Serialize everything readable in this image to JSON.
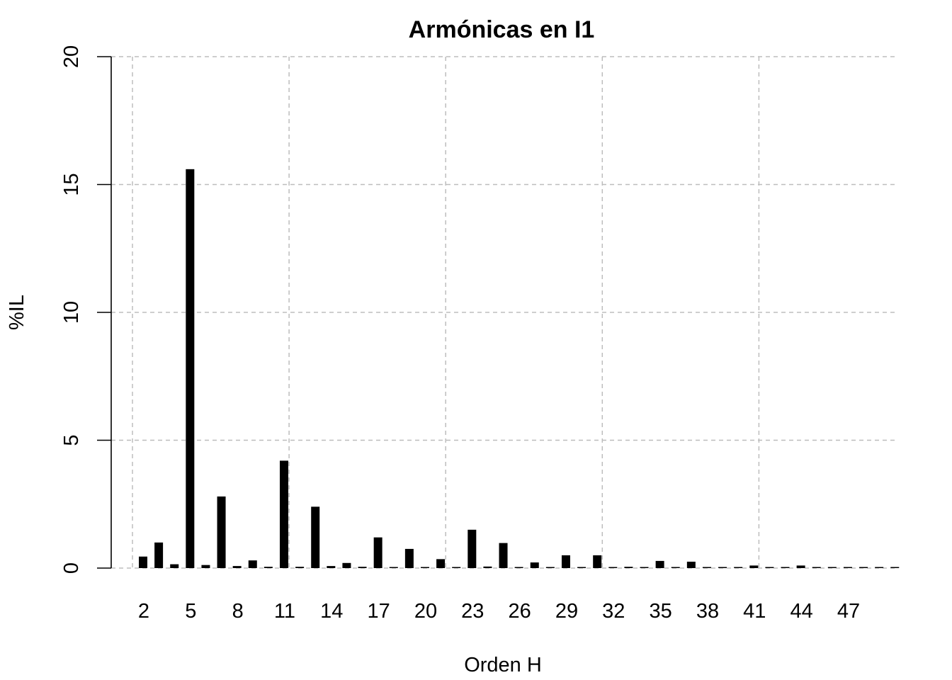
{
  "chart_data": {
    "type": "bar",
    "title": "Armónicas en I1",
    "xlabel": "Orden H",
    "ylabel": "%IL",
    "ylim": [
      0,
      20
    ],
    "yticks": [
      0,
      5,
      10,
      15,
      20
    ],
    "ytick_labels": [
      "0",
      "5",
      "10",
      "15",
      "20"
    ],
    "grid": true,
    "bar_color": "#000000",
    "grid_color": "#bdbdbd",
    "x_tick_labels": [
      "2",
      "5",
      "8",
      "11",
      "14",
      "17",
      "20",
      "23",
      "26",
      "29",
      "32",
      "35",
      "38",
      "41",
      "44",
      "47"
    ],
    "categories": [
      2,
      3,
      4,
      5,
      6,
      7,
      8,
      9,
      10,
      11,
      12,
      13,
      14,
      15,
      16,
      17,
      18,
      19,
      20,
      21,
      22,
      23,
      24,
      25,
      26,
      27,
      28,
      29,
      30,
      31,
      32,
      33,
      34,
      35,
      36,
      37,
      38,
      39,
      40,
      41,
      42,
      43,
      44,
      45,
      46,
      47,
      48,
      49,
      50
    ],
    "values": [
      0.45,
      1.0,
      0.15,
      15.6,
      0.12,
      2.8,
      0.08,
      0.3,
      0.05,
      4.2,
      0.05,
      2.4,
      0.08,
      0.2,
      0.05,
      1.2,
      0.03,
      0.75,
      0.04,
      0.35,
      0.03,
      1.5,
      0.06,
      0.98,
      0.03,
      0.22,
      0.03,
      0.5,
      0.04,
      0.5,
      0.03,
      0.05,
      0.02,
      0.28,
      0.02,
      0.25,
      0.01,
      0.01,
      0.01,
      0.1,
      0.01,
      0.02,
      0.1,
      0.01,
      0.01,
      0.01,
      0.01,
      0.04,
      0.01
    ]
  }
}
